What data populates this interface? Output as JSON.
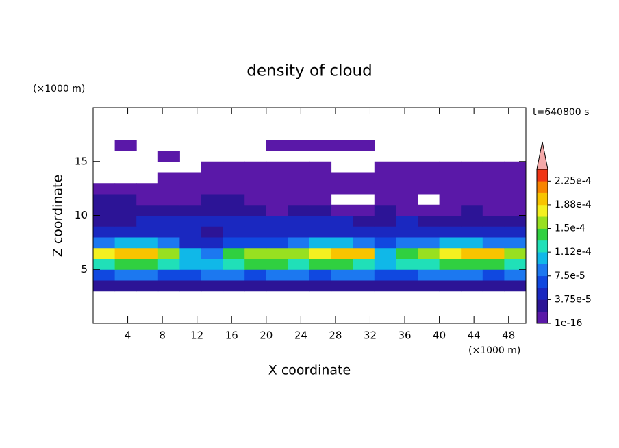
{
  "chart_data": {
    "type": "contour",
    "title": "density of cloud",
    "time_label": "t=640800 s",
    "x_label": "X coordinate",
    "y_label": "Z coordinate",
    "x_unit": "(×1000 m)",
    "y_unit": "(×1000 m)",
    "xlim": [
      0,
      50
    ],
    "xticks": [
      4,
      8,
      12,
      16,
      20,
      24,
      28,
      32,
      36,
      40,
      44,
      48
    ],
    "ylim": [
      0,
      20
    ],
    "yticks": [
      5,
      10,
      15
    ],
    "x": [
      1.25,
      3.75,
      6.25,
      8.75,
      11.25,
      13.75,
      16.25,
      18.75,
      21.25,
      23.75,
      26.25,
      28.75,
      31.25,
      33.75,
      36.25,
      38.75,
      41.25,
      43.75,
      46.25,
      48.75
    ],
    "z": [
      3.5,
      4.5,
      5.5,
      6.5,
      7.5,
      8.5,
      9.5,
      10.5,
      11.5,
      12.5,
      13.5,
      14.5,
      15.5,
      16.5
    ],
    "values": [
      [
        2.8e-05,
        2.8e-05,
        2.8e-05,
        2.8e-05,
        2.8e-05,
        2.8e-05,
        2.8e-05,
        2.8e-05,
        2.8e-05,
        2.8e-05,
        2.8e-05,
        2.8e-05,
        2.8e-05,
        2.8e-05,
        2.8e-05,
        2.8e-05,
        2.8e-05,
        2.8e-05,
        2.8e-05,
        2.8e-05
      ],
      [
        6.5e-05,
        8.4e-05,
        8.4e-05,
        6.5e-05,
        6.5e-05,
        8.4e-05,
        8.4e-05,
        6.5e-05,
        8.4e-05,
        8.4e-05,
        6.5e-05,
        8.4e-05,
        8.4e-05,
        6.5e-05,
        6.5e-05,
        8.4e-05,
        8.4e-05,
        8.4e-05,
        6.5e-05,
        8.4e-05
      ],
      [
        0.00012,
        0.00014,
        0.00014,
        0.00012,
        0.0001,
        0.0001,
        0.00012,
        0.00014,
        0.00014,
        0.00012,
        0.00014,
        0.00014,
        0.00012,
        0.0001,
        0.00012,
        0.00012,
        0.00014,
        0.00014,
        0.00014,
        0.00012
      ],
      [
        0.00018,
        0.0002,
        0.0002,
        0.00016,
        0.0001,
        8.4e-05,
        0.00014,
        0.00016,
        0.00016,
        0.00016,
        0.00018,
        0.0002,
        0.0002,
        0.0001,
        0.00014,
        0.00016,
        0.00018,
        0.0002,
        0.0002,
        0.00016
      ],
      [
        8.4e-05,
        0.0001,
        0.0001,
        8.4e-05,
        4.7e-05,
        4.7e-05,
        6.5e-05,
        6.5e-05,
        6.5e-05,
        8.4e-05,
        0.0001,
        0.0001,
        8.4e-05,
        6.5e-05,
        8.4e-05,
        8.4e-05,
        0.0001,
        0.0001,
        8.4e-05,
        8.4e-05
      ],
      [
        4.7e-05,
        4.7e-05,
        4.7e-05,
        4.7e-05,
        4.7e-05,
        2.8e-05,
        4.7e-05,
        4.7e-05,
        4.7e-05,
        4.7e-05,
        4.7e-05,
        4.7e-05,
        4.7e-05,
        4.7e-05,
        4.7e-05,
        4.7e-05,
        4.7e-05,
        4.7e-05,
        4.7e-05,
        4.7e-05
      ],
      [
        2.8e-05,
        2.8e-05,
        4.7e-05,
        4.7e-05,
        4.7e-05,
        4.7e-05,
        4.7e-05,
        4.7e-05,
        4.7e-05,
        4.7e-05,
        4.7e-05,
        4.7e-05,
        2.8e-05,
        2.8e-05,
        4.7e-05,
        2.8e-05,
        2.8e-05,
        2.8e-05,
        2.8e-05,
        2.8e-05
      ],
      [
        2.8e-05,
        2.8e-05,
        2.8e-05,
        2.8e-05,
        2.8e-05,
        2.8e-05,
        2.8e-05,
        2.8e-05,
        1e-05,
        2.8e-05,
        2.8e-05,
        1e-05,
        1e-05,
        2.8e-05,
        1e-05,
        1e-05,
        1e-05,
        2.8e-05,
        1e-05,
        1e-05
      ],
      [
        2.8e-05,
        2.8e-05,
        1e-05,
        1e-05,
        1e-05,
        2.8e-05,
        2.8e-05,
        1e-05,
        1e-05,
        1e-05,
        1e-05,
        null,
        null,
        1e-05,
        1e-05,
        null,
        1e-05,
        1e-05,
        1e-05,
        1e-05
      ],
      [
        1e-05,
        1e-05,
        1e-05,
        1e-05,
        1e-05,
        1e-05,
        1e-05,
        1e-05,
        1e-05,
        1e-05,
        1e-05,
        1e-05,
        1e-05,
        1e-05,
        1e-05,
        1e-05,
        1e-05,
        1e-05,
        1e-05,
        1e-05
      ],
      [
        null,
        null,
        null,
        1e-05,
        1e-05,
        1e-05,
        1e-05,
        1e-05,
        1e-05,
        1e-05,
        1e-05,
        1e-05,
        1e-05,
        1e-05,
        1e-05,
        1e-05,
        1e-05,
        1e-05,
        1e-05,
        1e-05
      ],
      [
        null,
        null,
        null,
        null,
        null,
        1e-05,
        1e-05,
        1e-05,
        1e-05,
        1e-05,
        1e-05,
        null,
        null,
        1e-05,
        1e-05,
        1e-05,
        1e-05,
        1e-05,
        1e-05,
        1e-05
      ],
      [
        null,
        null,
        null,
        1e-05,
        null,
        null,
        null,
        null,
        null,
        null,
        null,
        null,
        null,
        null,
        null,
        null,
        null,
        null,
        null,
        null
      ],
      [
        null,
        1e-05,
        null,
        null,
        null,
        null,
        null,
        null,
        1e-05,
        1e-05,
        1e-05,
        1e-05,
        1e-05,
        null,
        null,
        null,
        null,
        null,
        null,
        null
      ]
    ],
    "levels": [
      1e-16,
      1.875e-05,
      3.75e-05,
      5.625e-05,
      7.5e-05,
      9.375e-05,
      0.0001125,
      0.00013125,
      0.00015,
      0.00016875,
      0.0001875,
      0.00020625,
      0.000225,
      0.00024375
    ],
    "colors": [
      "#5a18a8",
      "#2c1496",
      "#1a28c0",
      "#1048e0",
      "#1c78f0",
      "#10b8e8",
      "#20e0b8",
      "#30d040",
      "#98e020",
      "#f4f020",
      "#f8c400",
      "#f88400",
      "#f03414"
    ],
    "over_color": "#f4a8a8",
    "colorbar_ticks": [
      {
        "value": 1e-16,
        "label": "1e-16"
      },
      {
        "value": 3.75e-05,
        "label": "3.75e-5"
      },
      {
        "value": 7.5e-05,
        "label": "7.5e-5"
      },
      {
        "value": 0.0001125,
        "label": "1.12e-4"
      },
      {
        "value": 0.00015,
        "label": "1.5e-4"
      },
      {
        "value": 0.0001875,
        "label": "1.88e-4"
      },
      {
        "value": 0.000225,
        "label": "2.25e-4"
      }
    ]
  }
}
